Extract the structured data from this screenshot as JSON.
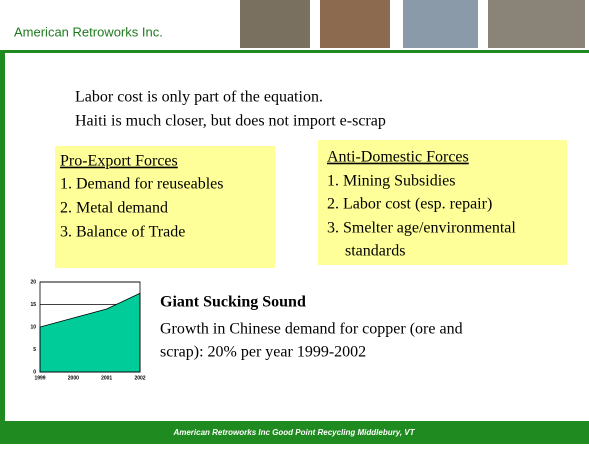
{
  "header": {
    "title": "American Retroworks Inc."
  },
  "intro": [
    "Labor cost is only part of the equation.",
    "Haiti is much closer, but does not import e-scrap"
  ],
  "left_box": {
    "heading": "Pro-Export Forces",
    "items": [
      "1.  Demand for reuseables",
      "2.  Metal demand",
      "3.  Balance of Trade"
    ]
  },
  "right_box": {
    "heading": "Anti-Domestic Forces",
    "items": [
      "1.  Mining Subsidies",
      "2.  Labor cost (esp. repair)",
      "3.  Smelter age/environmental",
      "standards"
    ]
  },
  "callout": {
    "title": "Giant Sucking Sound",
    "lines": [
      "Growth in Chinese demand for copper (ore and",
      "scrap):  20% per year 1999-2002"
    ]
  },
  "footer": "American Retroworks Inc  Good Point Recycling  Middlebury, VT",
  "chart_data": {
    "type": "area",
    "x": [
      1999,
      2000,
      2001,
      2002
    ],
    "values": [
      10,
      12,
      14,
      17.5
    ],
    "color": "#00cc99",
    "xlim": [
      1999,
      2002
    ],
    "xticks": [
      1999,
      2000,
      2001,
      2002
    ],
    "ylim": [
      0,
      20
    ],
    "yticks": [
      0,
      5,
      10,
      15,
      20
    ],
    "grid": true
  }
}
